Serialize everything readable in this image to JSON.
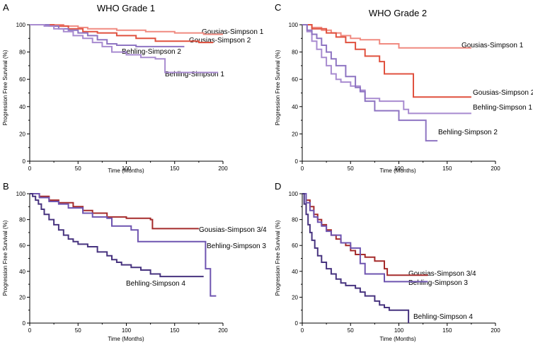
{
  "figure": {
    "colors": {
      "gousias_1": "#f08a80",
      "gousias_2": "#e0513f",
      "gousias_34": "#a52b2b",
      "behling_1": "#a88bd0",
      "behling_2": "#8e74c2",
      "behling_3": "#6e54b0",
      "behling_4": "#47337f"
    }
  },
  "chart_data": [
    {
      "panel": "A",
      "type": "line",
      "title": "WHO Grade 1",
      "xlabel": "Time (Months)",
      "ylabel": "Progression Free Survival (%)",
      "xlim": [
        0,
        200
      ],
      "ylim": [
        0,
        100
      ],
      "xticks": [
        0,
        50,
        100,
        150,
        200
      ],
      "yticks": [
        0,
        20,
        40,
        60,
        80,
        100
      ],
      "series": [
        {
          "name": "Gousias-Simpson 1",
          "color_key": "gousias_1",
          "points": [
            [
              0,
              100
            ],
            [
              20,
              100
            ],
            [
              35,
              99
            ],
            [
              50,
              98
            ],
            [
              60,
              97
            ],
            [
              75,
              97
            ],
            [
              90,
              96
            ],
            [
              110,
              96
            ],
            [
              120,
              95
            ],
            [
              150,
              94
            ],
            [
              180,
              93
            ],
            [
              200,
              93
            ]
          ]
        },
        {
          "name": "Gousias-Simpson 2",
          "color_key": "gousias_2",
          "points": [
            [
              0,
              100
            ],
            [
              25,
              99
            ],
            [
              40,
              97
            ],
            [
              55,
              95
            ],
            [
              70,
              94
            ],
            [
              90,
              92
            ],
            [
              110,
              90
            ],
            [
              130,
              88
            ],
            [
              150,
              88
            ],
            [
              175,
              87
            ],
            [
              190,
              87
            ]
          ]
        },
        {
          "name": "Behling-Simpson 2",
          "color_key": "behling_2",
          "points": [
            [
              0,
              100
            ],
            [
              20,
              99
            ],
            [
              30,
              97
            ],
            [
              40,
              96
            ],
            [
              50,
              94
            ],
            [
              60,
              92
            ],
            [
              70,
              89
            ],
            [
              80,
              86
            ],
            [
              90,
              85
            ],
            [
              110,
              84
            ],
            [
              130,
              84
            ],
            [
              160,
              84
            ]
          ]
        },
        {
          "name": "Behling-Simpson 1",
          "color_key": "behling_1",
          "points": [
            [
              0,
              100
            ],
            [
              15,
              99
            ],
            [
              25,
              97
            ],
            [
              35,
              95
            ],
            [
              45,
              92
            ],
            [
              55,
              90
            ],
            [
              65,
              87
            ],
            [
              75,
              84
            ],
            [
              85,
              80
            ],
            [
              100,
              78
            ],
            [
              115,
              76
            ],
            [
              130,
              75
            ],
            [
              140,
              65
            ],
            [
              160,
              65
            ],
            [
              195,
              65
            ]
          ]
        }
      ],
      "labels": [
        "Gousias-Simpson 1",
        "Gousias-Simpson 2",
        "Behling-Simpson 2",
        "Behling-Simpson 1"
      ]
    },
    {
      "panel": "C",
      "type": "line",
      "title": "WHO Grade 2",
      "xlabel": "Time (Months)",
      "ylabel": "Progression Free Survival (%)",
      "xlim": [
        0,
        200
      ],
      "ylim": [
        0,
        100
      ],
      "xticks": [
        0,
        50,
        100,
        150,
        200
      ],
      "yticks": [
        0,
        20,
        40,
        60,
        80,
        100
      ],
      "series": [
        {
          "name": "Gousias-Simpson 1",
          "color_key": "gousias_1",
          "points": [
            [
              0,
              100
            ],
            [
              10,
              98
            ],
            [
              20,
              96
            ],
            [
              30,
              94
            ],
            [
              40,
              92
            ],
            [
              50,
              90
            ],
            [
              60,
              89
            ],
            [
              80,
              86
            ],
            [
              100,
              83
            ],
            [
              120,
              83
            ],
            [
              150,
              83
            ],
            [
              175,
              83
            ]
          ]
        },
        {
          "name": "Gousias-Simpson 2",
          "color_key": "gousias_2",
          "points": [
            [
              0,
              100
            ],
            [
              10,
              97
            ],
            [
              25,
              94
            ],
            [
              35,
              91
            ],
            [
              45,
              87
            ],
            [
              55,
              82
            ],
            [
              65,
              77
            ],
            [
              80,
              73
            ],
            [
              85,
              64
            ],
            [
              115,
              64
            ],
            [
              115,
              47
            ],
            [
              175,
              47
            ]
          ]
        },
        {
          "name": "Behling-Simpson 1",
          "color_key": "behling_1",
          "points": [
            [
              0,
              100
            ],
            [
              5,
              95
            ],
            [
              10,
              88
            ],
            [
              15,
              82
            ],
            [
              20,
              76
            ],
            [
              25,
              70
            ],
            [
              30,
              64
            ],
            [
              35,
              60
            ],
            [
              40,
              58
            ],
            [
              50,
              55
            ],
            [
              60,
              52
            ],
            [
              65,
              46
            ],
            [
              80,
              44
            ],
            [
              90,
              44
            ],
            [
              105,
              38
            ],
            [
              110,
              35
            ],
            [
              140,
              35
            ],
            [
              175,
              35
            ]
          ]
        },
        {
          "name": "Behling-Simpson 2",
          "color_key": "behling_2",
          "points": [
            [
              0,
              100
            ],
            [
              5,
              96
            ],
            [
              10,
              93
            ],
            [
              15,
              90
            ],
            [
              20,
              85
            ],
            [
              25,
              80
            ],
            [
              30,
              75
            ],
            [
              35,
              70
            ],
            [
              45,
              62
            ],
            [
              55,
              54
            ],
            [
              60,
              51
            ],
            [
              65,
              44
            ],
            [
              75,
              37
            ],
            [
              90,
              37
            ],
            [
              100,
              30
            ],
            [
              115,
              30
            ],
            [
              128,
              15
            ],
            [
              140,
              15
            ]
          ]
        }
      ],
      "labels": [
        "Gousias-Simpson 1",
        "Gousias-Simpson 2",
        "Behling-Simpson 1",
        "Behling-Simpson 2"
      ]
    },
    {
      "panel": "B",
      "type": "line",
      "title": "",
      "xlabel": "Time (Months)",
      "ylabel": "Progression Free Survival (%)",
      "xlim": [
        0,
        200
      ],
      "ylim": [
        0,
        100
      ],
      "xticks": [
        0,
        50,
        100,
        150,
        200
      ],
      "yticks": [
        0,
        20,
        40,
        60,
        80,
        100
      ],
      "series": [
        {
          "name": "Gousias-Simpson 3/4",
          "color_key": "gousias_34",
          "points": [
            [
              0,
              100
            ],
            [
              10,
              98
            ],
            [
              20,
              95
            ],
            [
              30,
              93
            ],
            [
              45,
              90
            ],
            [
              55,
              87
            ],
            [
              65,
              85
            ],
            [
              80,
              82
            ],
            [
              100,
              81
            ],
            [
              125,
              80
            ],
            [
              127,
              73
            ],
            [
              150,
              73
            ],
            [
              175,
              73
            ]
          ]
        },
        {
          "name": "Behling-Simpson 3",
          "color_key": "behling_3",
          "points": [
            [
              0,
              100
            ],
            [
              10,
              97
            ],
            [
              20,
              94
            ],
            [
              30,
              92
            ],
            [
              40,
              89
            ],
            [
              55,
              85
            ],
            [
              65,
              82
            ],
            [
              80,
              81
            ],
            [
              85,
              75
            ],
            [
              100,
              75
            ],
            [
              105,
              72
            ],
            [
              110,
              72
            ],
            [
              112,
              63
            ],
            [
              140,
              63
            ],
            [
              180,
              63
            ],
            [
              182,
              42
            ],
            [
              185,
              42
            ],
            [
              187,
              21
            ],
            [
              193,
              21
            ]
          ]
        },
        {
          "name": "Behling-Simpson 4",
          "color_key": "behling_4",
          "points": [
            [
              0,
              100
            ],
            [
              3,
              98
            ],
            [
              6,
              95
            ],
            [
              9,
              92
            ],
            [
              12,
              88
            ],
            [
              15,
              84
            ],
            [
              20,
              80
            ],
            [
              25,
              76
            ],
            [
              30,
              72
            ],
            [
              35,
              68
            ],
            [
              40,
              65
            ],
            [
              45,
              63
            ],
            [
              50,
              61
            ],
            [
              60,
              59
            ],
            [
              70,
              55
            ],
            [
              80,
              52
            ],
            [
              85,
              49
            ],
            [
              90,
              47
            ],
            [
              95,
              45
            ],
            [
              105,
              43
            ],
            [
              115,
              41
            ],
            [
              125,
              38
            ],
            [
              135,
              36
            ],
            [
              150,
              36
            ],
            [
              170,
              36
            ],
            [
              180,
              36
            ]
          ]
        }
      ],
      "labels": [
        "Gousias-Simpson 3/4",
        "Behling-Simpson 3",
        "Behling-Simpson 4"
      ]
    },
    {
      "panel": "D",
      "type": "line",
      "title": "",
      "xlabel": "Time (Months)",
      "ylabel": "Progression Free Survival (%)",
      "xlim": [
        0,
        200
      ],
      "ylim": [
        0,
        100
      ],
      "xticks": [
        0,
        50,
        100,
        150,
        200
      ],
      "yticks": [
        0,
        20,
        40,
        60,
        80,
        100
      ],
      "series": [
        {
          "name": "Gousias-Simpson 3/4",
          "color_key": "gousias_34",
          "points": [
            [
              0,
              100
            ],
            [
              4,
              95
            ],
            [
              8,
              90
            ],
            [
              12,
              84
            ],
            [
              16,
              80
            ],
            [
              20,
              76
            ],
            [
              25,
              72
            ],
            [
              30,
              68
            ],
            [
              35,
              65
            ],
            [
              40,
              62
            ],
            [
              45,
              60
            ],
            [
              50,
              56
            ],
            [
              55,
              53
            ],
            [
              65,
              51
            ],
            [
              75,
              48
            ],
            [
              85,
              42
            ],
            [
              88,
              37
            ],
            [
              110,
              37
            ],
            [
              130,
              37
            ]
          ]
        },
        {
          "name": "Behling-Simpson 3",
          "color_key": "behling_3",
          "points": [
            [
              0,
              100
            ],
            [
              4,
              93
            ],
            [
              8,
              87
            ],
            [
              12,
              82
            ],
            [
              16,
              78
            ],
            [
              20,
              75
            ],
            [
              25,
              71
            ],
            [
              30,
              68
            ],
            [
              40,
              62
            ],
            [
              50,
              58
            ],
            [
              60,
              46
            ],
            [
              65,
              38
            ],
            [
              80,
              38
            ],
            [
              85,
              32
            ],
            [
              100,
              32
            ],
            [
              130,
              32
            ]
          ]
        },
        {
          "name": "Behling-Simpson 4",
          "color_key": "behling_4",
          "points": [
            [
              0,
              100
            ],
            [
              2,
              92
            ],
            [
              4,
              84
            ],
            [
              6,
              76
            ],
            [
              8,
              70
            ],
            [
              10,
              64
            ],
            [
              13,
              58
            ],
            [
              16,
              52
            ],
            [
              20,
              47
            ],
            [
              25,
              42
            ],
            [
              30,
              38
            ],
            [
              35,
              34
            ],
            [
              40,
              31
            ],
            [
              45,
              29
            ],
            [
              55,
              27
            ],
            [
              60,
              24
            ],
            [
              65,
              21
            ],
            [
              75,
              17
            ],
            [
              80,
              14
            ],
            [
              85,
              12
            ],
            [
              90,
              10
            ],
            [
              100,
              10
            ],
            [
              110,
              10
            ],
            [
              110,
              0
            ]
          ]
        }
      ],
      "labels": [
        "Gousias-Simpson 3/4",
        "Behling-Simpson 3",
        "Behling-Simpson 4"
      ]
    }
  ]
}
